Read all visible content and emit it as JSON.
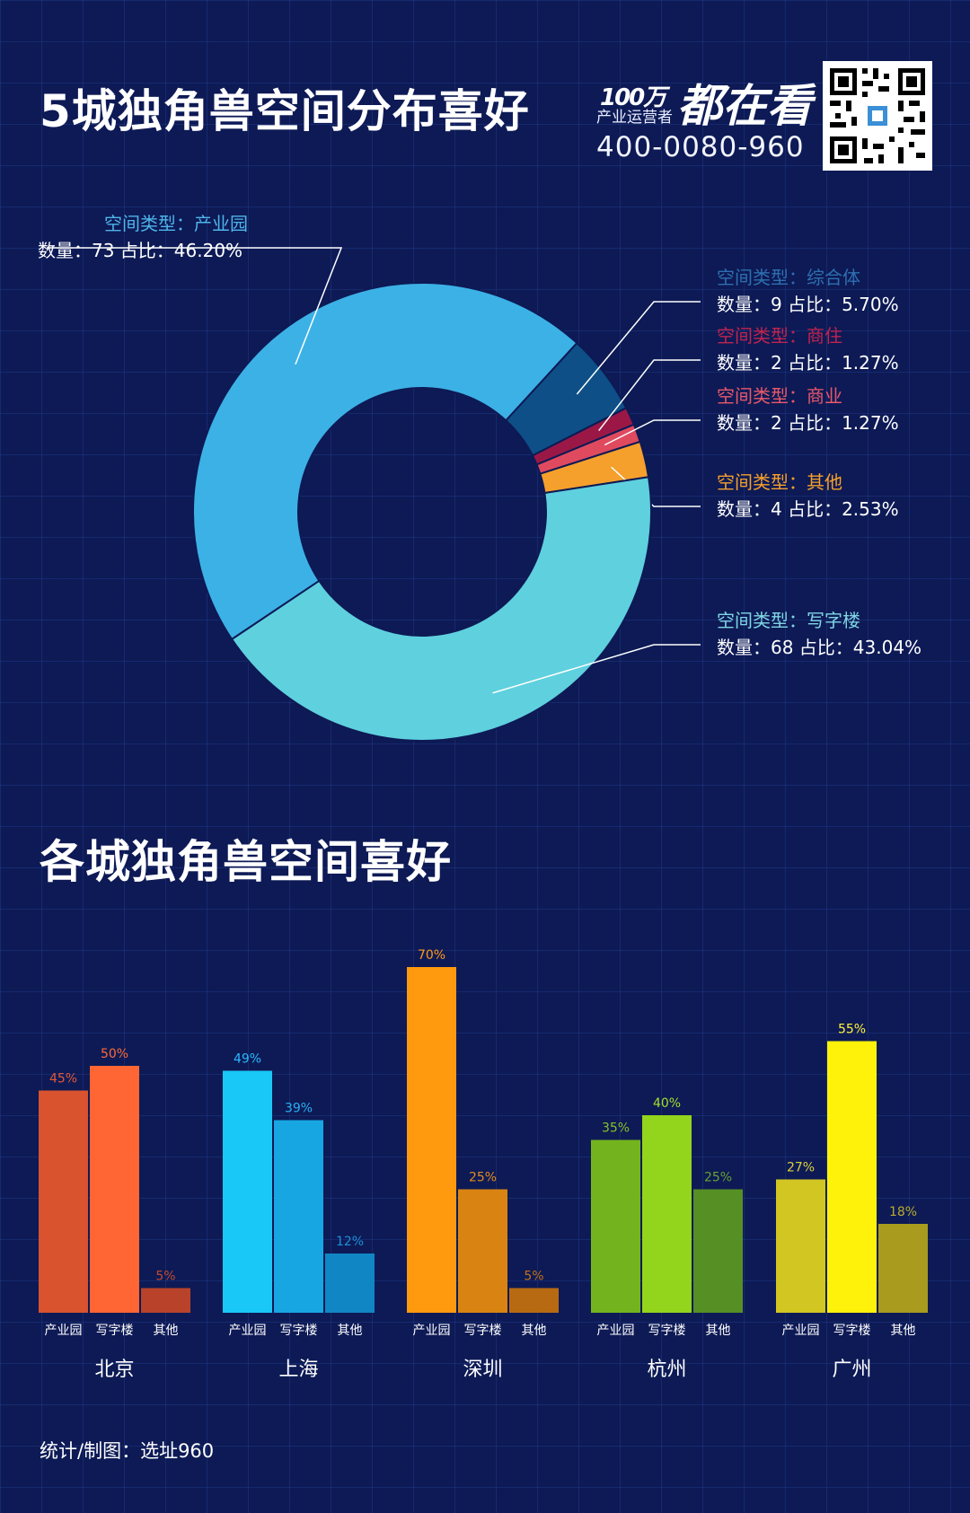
{
  "header": {
    "title": "5城独角兽空间分布喜好",
    "section2_title": "各城独角兽空间喜好"
  },
  "brand": {
    "logo_text": "100万",
    "tagline": "产业运营者",
    "slogan": "都在看",
    "phone": "400-0080-960",
    "qr_icon": "qr-code-icon"
  },
  "footer": {
    "credit": "统计/制图：选址960"
  },
  "colors": {
    "background": "#0d1a55",
    "park": "#3cb1e6",
    "office": "#5fd0de",
    "complex": "#0e4f87",
    "residential": "#9b1846",
    "commercial": "#e04a5f",
    "other": "#f5a02c"
  },
  "chart_data": [
    {
      "type": "pie",
      "title": "5城独角兽空间分布喜好",
      "slices": [
        {
          "label_line1": "空间类型：综合体",
          "label_line2": "数量：9  占比：5.70%",
          "type": "综合体",
          "count": 9,
          "percent": 5.7,
          "color": "#0e4f87",
          "label_color": "#2e6fb0"
        },
        {
          "label_line1": "空间类型：商住",
          "label_line2": "数量：2  占比：1.27%",
          "type": "商住",
          "count": 2,
          "percent": 1.27,
          "color": "#9b1846",
          "label_color": "#c0234f"
        },
        {
          "label_line1": "空间类型：商业",
          "label_line2": "数量：2  占比：1.27%",
          "type": "商业",
          "count": 2,
          "percent": 1.27,
          "color": "#e04a5f",
          "label_color": "#e8586b"
        },
        {
          "label_line1": "空间类型：其他",
          "label_line2": "数量：4  占比：2.53%",
          "type": "其他",
          "count": 4,
          "percent": 2.53,
          "color": "#f5a02c",
          "label_color": "#f5a02c"
        },
        {
          "label_line1": "空间类型：写字楼",
          "label_line2": "数量：68  占比：43.04%",
          "type": "写字楼",
          "count": 68,
          "percent": 43.04,
          "color": "#5fd0de",
          "label_color": "#7fd6e4"
        },
        {
          "label_line1": "空间类型：产业园",
          "label_line2": "数量：73  占比：46.20%",
          "type": "产业园",
          "count": 73,
          "percent": 46.2,
          "color": "#3cb1e6",
          "label_color": "#4fb4ea"
        }
      ]
    },
    {
      "type": "bar",
      "title": "各城独角兽空间喜好",
      "categories": [
        "产业园",
        "写字楼",
        "其他"
      ],
      "ylim": [
        0,
        70
      ],
      "groups": [
        {
          "city": "北京",
          "values": [
            45,
            50,
            5
          ],
          "labels": [
            "45%",
            "50%",
            "5%"
          ],
          "colors": [
            "#d8532e",
            "#ff6633",
            "#b8432a"
          ],
          "label_colors": [
            "#e0583a",
            "#ff6a3a",
            "#c24a30"
          ]
        },
        {
          "city": "上海",
          "values": [
            49,
            39,
            12
          ],
          "labels": [
            "49%",
            "39%",
            "12%"
          ],
          "colors": [
            "#19c8f7",
            "#17a6e2",
            "#1186c4"
          ],
          "label_colors": [
            "#2ab9ff",
            "#2ab0f0",
            "#1e90d8"
          ]
        },
        {
          "city": "深圳",
          "values": [
            70,
            25,
            5
          ],
          "labels": [
            "70%",
            "25%",
            "5%"
          ],
          "colors": [
            "#ff9a0f",
            "#d98412",
            "#b86a12"
          ],
          "label_colors": [
            "#ff9a1a",
            "#e08a20",
            "#c07018"
          ]
        },
        {
          "city": "杭州",
          "values": [
            35,
            40,
            25
          ],
          "labels": [
            "35%",
            "40%",
            "25%"
          ],
          "colors": [
            "#73b41e",
            "#93d41c",
            "#568f24"
          ],
          "label_colors": [
            "#86c12a",
            "#a4df2a",
            "#6aa030"
          ]
        },
        {
          "city": "广州",
          "values": [
            27,
            55,
            18
          ],
          "labels": [
            "27%",
            "55%",
            "18%"
          ],
          "colors": [
            "#d2c622",
            "#fff20a",
            "#a89b1e"
          ],
          "label_colors": [
            "#ddd13a",
            "#fff23a",
            "#b8ab2e"
          ]
        }
      ]
    }
  ]
}
